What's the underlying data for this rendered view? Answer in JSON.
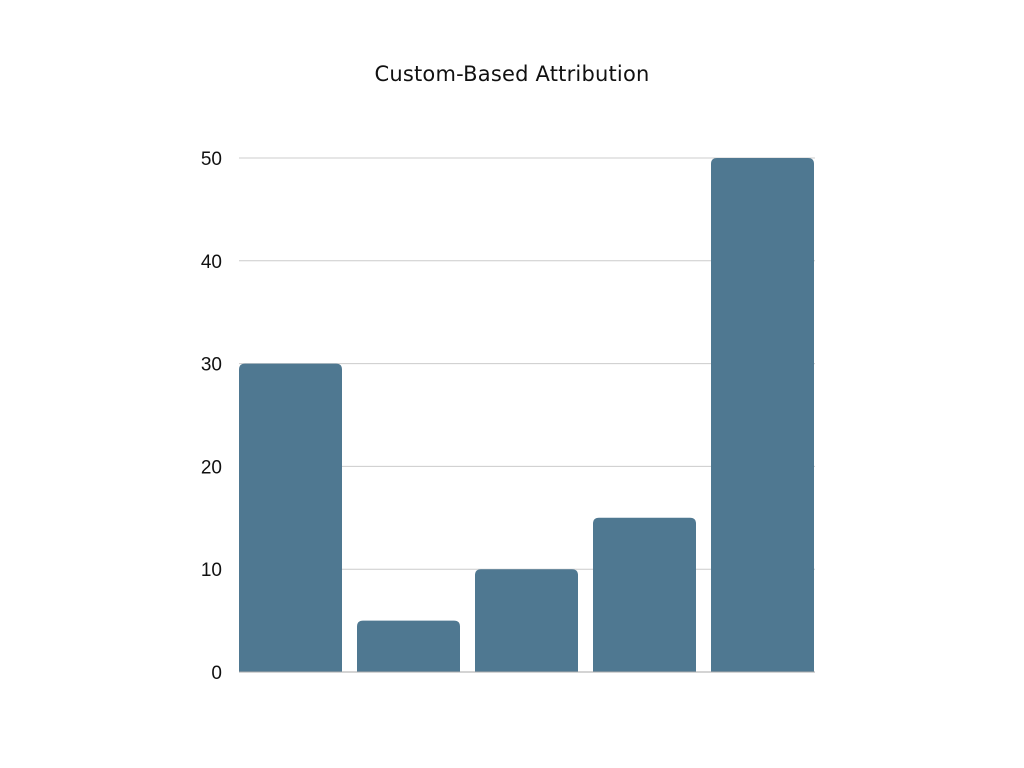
{
  "colors": {
    "bar": "#4f7891",
    "grid": "#cccccc",
    "axis": "#aaaaaa",
    "text": "#111111",
    "background": "#ffffff"
  },
  "chart_data": {
    "type": "bar",
    "title": "Custom-Based Attribution",
    "xlabel": "",
    "ylabel": "",
    "categories": [
      "",
      "",
      "",
      "",
      ""
    ],
    "values": [
      30,
      5,
      10,
      15,
      50
    ],
    "ylim": [
      0,
      50
    ],
    "yticks": [
      0,
      10,
      20,
      30,
      40,
      50
    ],
    "grid": true,
    "legend": "none"
  }
}
